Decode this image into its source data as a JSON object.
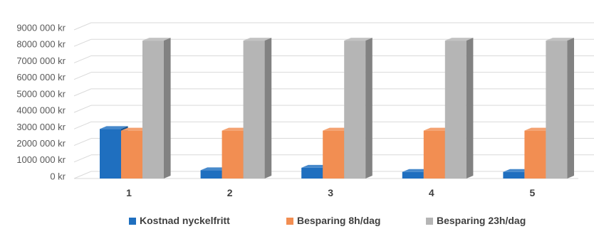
{
  "chart_data": {
    "type": "bar",
    "title": "",
    "xlabel": "",
    "ylabel": "",
    "categories": [
      "1",
      "2",
      "3",
      "4",
      "5"
    ],
    "series": [
      {
        "name": "Kostnad nyckelfritt",
        "color": "#1f6fbf",
        "values": [
          3000000,
          500000,
          650000,
          400000,
          400000
        ]
      },
      {
        "name": "Besparing 8h/dag",
        "color": "#f28e52",
        "values": [
          2900000,
          2900000,
          2900000,
          2900000,
          2900000
        ]
      },
      {
        "name": "Besparing 23h/dag",
        "color": "#b5b5b5",
        "values": [
          8350000,
          8350000,
          8350000,
          8350000,
          8350000
        ]
      }
    ],
    "ylim": [
      0,
      9000000
    ],
    "yticks": [
      {
        "value": 0,
        "label": "0 kr"
      },
      {
        "value": 1000000,
        "label": "1000 000 kr"
      },
      {
        "value": 2000000,
        "label": "2000 000 kr"
      },
      {
        "value": 3000000,
        "label": "3000 000 kr"
      },
      {
        "value": 4000000,
        "label": "4000 000 kr"
      },
      {
        "value": 5000000,
        "label": "5000 000 kr"
      },
      {
        "value": 6000000,
        "label": "6000 000 kr"
      },
      {
        "value": 7000000,
        "label": "7000 000 kr"
      },
      {
        "value": 8000000,
        "label": "8000 000 kr"
      },
      {
        "value": 9000000,
        "label": "9000 000 kr"
      }
    ],
    "grid": true,
    "legend": "bottom",
    "style": "3d-clustered-column"
  }
}
